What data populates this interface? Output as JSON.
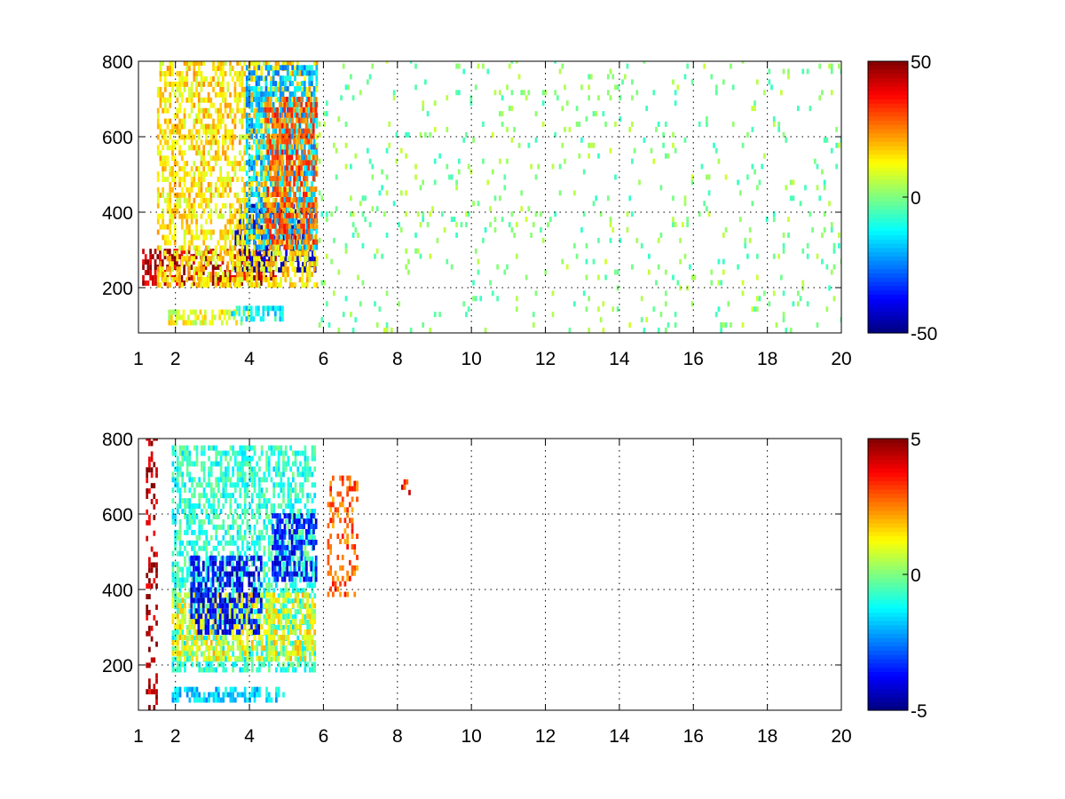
{
  "figure": {
    "background": "#ffffff"
  },
  "chart_data": [
    {
      "type": "heatmap",
      "title": "",
      "xlabel": "",
      "ylabel": "",
      "xlim": [
        1,
        20
      ],
      "ylim": [
        80,
        800
      ],
      "x_ticks": [
        1,
        2,
        4,
        6,
        8,
        10,
        12,
        14,
        16,
        18,
        20
      ],
      "x_tick_labels": [
        "1",
        "2",
        "4",
        "6",
        "8",
        "10",
        "12",
        "14",
        "16",
        "18",
        "20"
      ],
      "y_ticks": [
        200,
        400,
        600,
        800
      ],
      "y_tick_labels": [
        "200",
        "400",
        "600",
        "800"
      ],
      "grid": true,
      "colormap": "jet",
      "colorbar": {
        "min": -50,
        "max": 50,
        "ticks": [
          50,
          0,
          -50
        ],
        "tick_labels": [
          "50",
          "0",
          "-50"
        ],
        "position": "right"
      },
      "features": [
        {
          "shape": "band",
          "x": [
            1.1,
            4.7
          ],
          "y": [
            205,
            300
          ],
          "value": 45
        },
        {
          "shape": "band",
          "x": [
            3.6,
            5.8
          ],
          "y": [
            240,
            420
          ],
          "value": -45
        },
        {
          "shape": "blob",
          "x": [
            1.5,
            5.8
          ],
          "y": [
            200,
            800
          ],
          "value": 15
        },
        {
          "shape": "blob",
          "x": [
            3.9,
            5.8
          ],
          "y": [
            300,
            780
          ],
          "value": -18
        },
        {
          "shape": "blob",
          "x": [
            4.4,
            5.8
          ],
          "y": [
            300,
            700
          ],
          "value": 28
        },
        {
          "shape": "band",
          "x": [
            1.8,
            4.0
          ],
          "y": [
            100,
            140
          ],
          "value": 10
        },
        {
          "shape": "band",
          "x": [
            3.5,
            4.9
          ],
          "y": [
            110,
            140
          ],
          "value": -12
        },
        {
          "shape": "sparse",
          "x": [
            5.8,
            20
          ],
          "y": [
            80,
            800
          ],
          "value_range": [
            -8,
            8
          ],
          "density": 0.06
        }
      ]
    },
    {
      "type": "heatmap",
      "title": "",
      "xlabel": "",
      "ylabel": "",
      "xlim": [
        1,
        20
      ],
      "ylim": [
        80,
        800
      ],
      "x_ticks": [
        1,
        2,
        4,
        6,
        8,
        10,
        12,
        14,
        16,
        18,
        20
      ],
      "x_tick_labels": [
        "1",
        "2",
        "4",
        "6",
        "8",
        "10",
        "12",
        "14",
        "16",
        "18",
        "20"
      ],
      "y_ticks": [
        200,
        400,
        600,
        800
      ],
      "y_tick_labels": [
        "200",
        "400",
        "600",
        "800"
      ],
      "grid": true,
      "colormap": "jet",
      "colorbar": {
        "min": -5,
        "max": 5,
        "ticks": [
          5,
          0,
          -5
        ],
        "tick_labels": [
          "5",
          "0",
          "-5"
        ],
        "position": "right"
      },
      "features": [
        {
          "shape": "blob",
          "x": [
            1.9,
            5.8
          ],
          "y": [
            180,
            780
          ],
          "value": -0.8
        },
        {
          "shape": "band",
          "x": [
            1.9,
            5.8
          ],
          "y": [
            210,
            380
          ],
          "value": 1.2
        },
        {
          "shape": "blob",
          "x": [
            2.4,
            4.3
          ],
          "y": [
            280,
            480
          ],
          "value": -3.8
        },
        {
          "shape": "blob",
          "x": [
            4.6,
            5.8
          ],
          "y": [
            420,
            600
          ],
          "value": -3.6
        },
        {
          "shape": "band",
          "x": [
            1.9,
            4.9
          ],
          "y": [
            100,
            140
          ],
          "value": -1.6
        },
        {
          "shape": "spot",
          "x": [
            6.1,
            6.9
          ],
          "y": [
            380,
            700
          ],
          "value": 2.8
        },
        {
          "shape": "spot",
          "x": [
            8.1,
            8.4
          ],
          "y": [
            650,
            700
          ],
          "value": 3.5
        },
        {
          "shape": "spot",
          "x": [
            1.2,
            1.5
          ],
          "y": [
            80,
            800
          ],
          "value": 4.5
        }
      ]
    }
  ]
}
